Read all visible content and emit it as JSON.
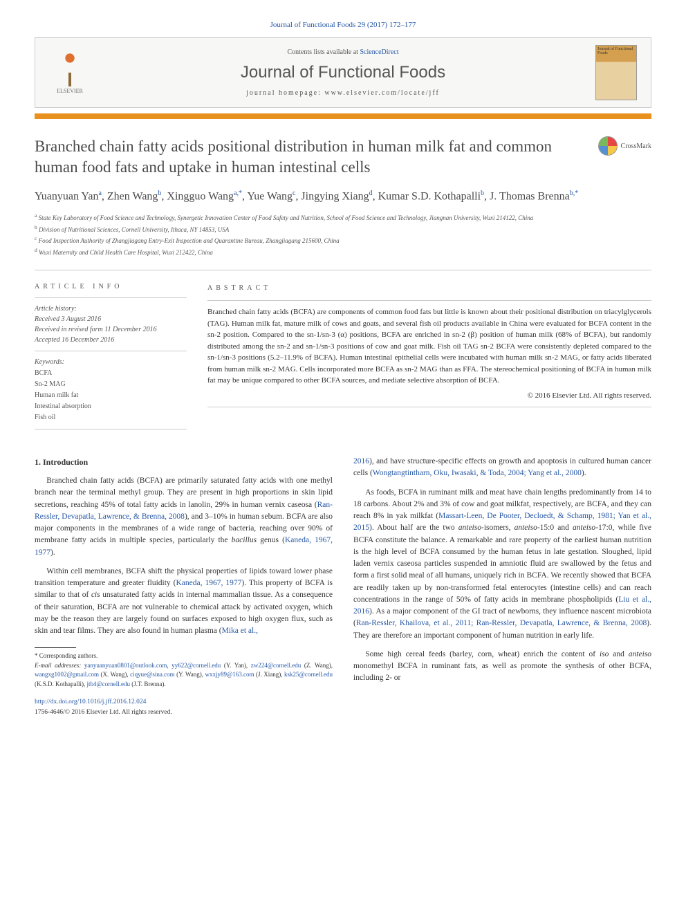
{
  "journal_ref": "Journal of Functional Foods 29 (2017) 172–177",
  "header": {
    "publisher": "ELSEVIER",
    "contents_available": "Contents lists available at ",
    "sciencedirect": "ScienceDirect",
    "journal_name": "Journal of Functional Foods",
    "homepage_label": "journal homepage: www.elsevier.com/locate/jff",
    "cover_label": "Journal of Functional Foods"
  },
  "crossmark_label": "CrossMark",
  "title": "Branched chain fatty acids positional distribution in human milk fat and common human food fats and uptake in human intestinal cells",
  "authors_html": "Yuanyuan Yan<sup>a</sup>, Zhen Wang<sup>b</sup>, Xingguo Wang<sup>a,*</sup>, Yue Wang<sup>c</sup>, Jingying Xiang<sup>d</sup>, Kumar S.D. Kothapalli<sup>b</sup>, J. Thomas Brenna<sup>b,*</sup>",
  "affiliations": [
    {
      "sup": "a",
      "text": "State Key Laboratory of Food Science and Technology, Synergetic Innovation Center of Food Safety and Nutrition, School of Food Science and Technology, Jiangnan University, Wuxi 214122, China"
    },
    {
      "sup": "b",
      "text": "Division of Nutritional Sciences, Cornell University, Ithaca, NY 14853, USA"
    },
    {
      "sup": "c",
      "text": "Food Inspection Authority of Zhangjiagang Entry-Exit Inspection and Quarantine Bureau, Zhangjiagang 215600, China"
    },
    {
      "sup": "d",
      "text": "Wuxi Maternity and Child Health Care Hospital, Wuxi 212422, China"
    }
  ],
  "article_info": {
    "section_label": "ARTICLE INFO",
    "history_label": "Article history:",
    "received": "Received 3 August 2016",
    "revised": "Received in revised form 11 December 2016",
    "accepted": "Accepted 16 December 2016",
    "keywords_label": "Keywords:",
    "keywords": [
      "BCFA",
      "Sn-2 MAG",
      "Human milk fat",
      "Intestinal absorption",
      "Fish oil"
    ]
  },
  "abstract": {
    "section_label": "ABSTRACT",
    "text": "Branched chain fatty acids (BCFA) are components of common food fats but little is known about their positional distribution on triacylglycerols (TAG). Human milk fat, mature milk of cows and goats, and several fish oil products available in China were evaluated for BCFA content in the sn-2 position. Compared to the sn-1/sn-3 (α) positions, BCFA are enriched in sn-2 (β) position of human milk (68% of BCFA), but randomly distributed among the sn-2 and sn-1/sn-3 positions of cow and goat milk. Fish oil TAG sn-2 BCFA were consistently depleted compared to the sn-1/sn-3 positions (5.2–11.9% of BCFA). Human intestinal epithelial cells were incubated with human milk sn-2 MAG, or fatty acids liberated from human milk sn-2 MAG. Cells incorporated more BCFA as sn-2 MAG than as FFA. The stereochemical positioning of BCFA in human milk fat may be unique compared to other BCFA sources, and mediate selective absorption of BCFA.",
    "copyright": "© 2016 Elsevier Ltd. All rights reserved."
  },
  "body": {
    "intro_heading": "1. Introduction",
    "left_paragraphs": [
      "Branched chain fatty acids (BCFA) are primarily saturated fatty acids with one methyl branch near the terminal methyl group. They are present in high proportions in skin lipid secretions, reaching 45% of total fatty acids in lanolin, 29% in human vernix caseosa (<span class=\"ref-link\">Ran-Ressler, Devapatla, Lawrence, & Brenna, 2008</span>), and 3–10% in human sebum. BCFA are also major components in the membranes of a wide range of bacteria, reaching over 90% of membrane fatty acids in multiple species, particularly the <i>bacillus</i> genus (<span class=\"ref-link\">Kaneda, 1967, 1977</span>).",
      "Within cell membranes, BCFA shift the physical properties of lipids toward lower phase transition temperature and greater fluidity (<span class=\"ref-link\">Kaneda, 1967, 1977</span>). This property of BCFA is similar to that of <i>cis</i> unsaturated fatty acids in internal mammalian tissue. As a consequence of their saturation, BCFA are not vulnerable to chemical attack by activated oxygen, which may be the reason they are largely found on surfaces exposed to high oxygen flux, such as skin and tear films. They are also found in human plasma (<span class=\"ref-link\">Mika et al.,</span>"
    ],
    "right_paragraphs": [
      "<span class=\"ref-link\">2016</span>), and have structure-specific effects on growth and apoptosis in cultured human cancer cells (<span class=\"ref-link\">Wongtangtintharn, Oku, Iwasaki, & Toda, 2004; Yang et al., 2000</span>).",
      "As foods, BCFA in ruminant milk and meat have chain lengths predominantly from 14 to 18 carbons. About 2% and 3% of cow and goat milkfat, respectively, are BCFA, and they can reach 8% in yak milkfat (<span class=\"ref-link\">Massart-Leen, De Pooter, Decloedt, & Schamp, 1981; Yan et al., 2015</span>). About half are the two <i>anteiso</i>-isomers, <i>anteiso</i>-15:0 and <i>anteiso</i>-17:0, while five BCFA constitute the balance. A remarkable and rare property of the earliest human nutrition is the high level of BCFA consumed by the human fetus in late gestation. Sloughed, lipid laden vernix caseosa particles suspended in amniotic fluid are swallowed by the fetus and form a first solid meal of all humans, uniquely rich in BCFA. We recently showed that BCFA are readily taken up by non-transformed fetal enterocytes (intestine cells) and can reach concentrations in the range of 50% of fatty acids in membrane phospholipids (<span class=\"ref-link\">Liu et al., 2016</span>). As a major component of the GI tract of newborns, they influence nascent microbiota (<span class=\"ref-link\">Ran-Ressler, Khailova, et al., 2011; Ran-Ressler, Devapatla, Lawrence, & Brenna, 2008</span>). They are therefore an important component of human nutrition in early life.",
      "Some high cereal feeds (barley, corn, wheat) enrich the content of <i>iso</i> and <i>anteiso</i> monomethyl BCFA in ruminant fats, as well as promote the synthesis of other BCFA, including 2- or"
    ]
  },
  "footnotes": {
    "corresponding": "* Corresponding authors.",
    "email_label": "E-mail addresses:",
    "emails": [
      {
        "email": "yanyuanyuan0801@outlook.com",
        "sep": ", "
      },
      {
        "email": "yy622@cornell.edu",
        "name": " (Y. Yan), "
      },
      {
        "email": "zw224@cornell.edu",
        "name": " (Z. Wang), "
      },
      {
        "email": "wangxg1002@gmail.com",
        "name": " (X. Wang), "
      },
      {
        "email": "ciqyue@sina.com",
        "name": " (Y. Wang), "
      },
      {
        "email": "wxxjy89@163.com",
        "name": " (J. Xiang), "
      },
      {
        "email": "ksk25@cornell.edu",
        "name": " (K.S.D. Kothapalli), "
      },
      {
        "email": "jtb4@cornell.edu",
        "name": " (J.T. Brenna)."
      }
    ]
  },
  "doi": "http://dx.doi.org/10.1016/j.jff.2016.12.024",
  "issn_copyright": "1756-4646/© 2016 Elsevier Ltd. All rights reserved."
}
